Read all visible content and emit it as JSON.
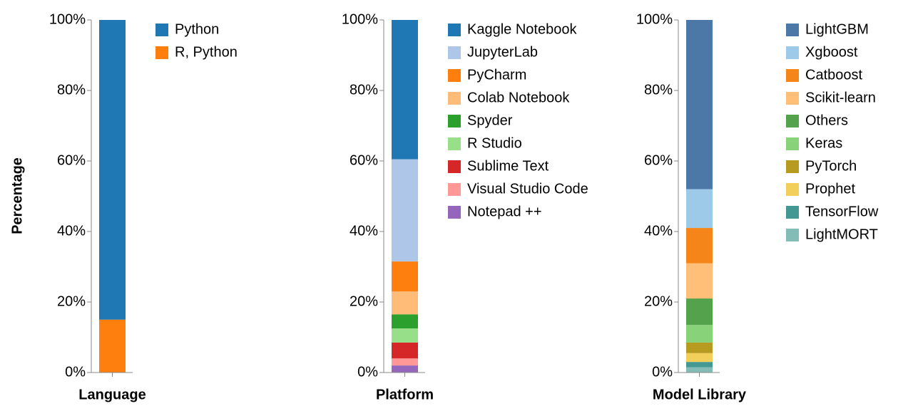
{
  "chart_data": [
    {
      "type": "bar",
      "stacked": true,
      "xlabel": "Language",
      "ylabel": "Percentage",
      "categories": [
        null
      ],
      "ylim": [
        0,
        100
      ],
      "yticks": [
        {
          "value": 0,
          "label": "0%"
        },
        {
          "value": 20,
          "label": "20%"
        },
        {
          "value": 40,
          "label": "40%"
        },
        {
          "value": 60,
          "label": "60%"
        },
        {
          "value": 80,
          "label": "80%"
        },
        {
          "value": 100,
          "label": "100%"
        }
      ],
      "series": [
        {
          "name": "Python",
          "color": "#1f77b4",
          "values": [
            85
          ]
        },
        {
          "name": "R, Python",
          "color": "#ff7f0e",
          "values": [
            15
          ]
        }
      ]
    },
    {
      "type": "bar",
      "stacked": true,
      "xlabel": "Platform",
      "categories": [
        null
      ],
      "ylim": [
        0,
        100
      ],
      "yticks": [
        {
          "value": 0,
          "label": "0%"
        },
        {
          "value": 20,
          "label": "20%"
        },
        {
          "value": 40,
          "label": "40%"
        },
        {
          "value": 60,
          "label": "60%"
        },
        {
          "value": 80,
          "label": "80%"
        },
        {
          "value": 100,
          "label": "100%"
        }
      ],
      "series": [
        {
          "name": "Kaggle Notebook",
          "color": "#1f77b4",
          "values": [
            39.5
          ]
        },
        {
          "name": "JupyterLab",
          "color": "#aec7e8",
          "values": [
            29
          ]
        },
        {
          "name": "PyCharm",
          "color": "#ff7f0e",
          "values": [
            8.5
          ]
        },
        {
          "name": "Colab Notebook",
          "color": "#ffbb78",
          "values": [
            6.5
          ]
        },
        {
          "name": "Spyder",
          "color": "#2ca02c",
          "values": [
            4
          ]
        },
        {
          "name": "R Studio",
          "color": "#98df8a",
          "values": [
            4
          ]
        },
        {
          "name": "Sublime Text",
          "color": "#d62728",
          "values": [
            4.5
          ]
        },
        {
          "name": "Visual Studio Code",
          "color": "#ff9896",
          "values": [
            2
          ]
        },
        {
          "name": "Notepad ++",
          "color": "#9467bd",
          "values": [
            2
          ]
        }
      ]
    },
    {
      "type": "bar",
      "stacked": true,
      "xlabel": "Model Library",
      "categories": [
        null
      ],
      "ylim": [
        0,
        100
      ],
      "yticks": [
        {
          "value": 0,
          "label": "0%"
        },
        {
          "value": 20,
          "label": "20%"
        },
        {
          "value": 40,
          "label": "40%"
        },
        {
          "value": 60,
          "label": "60%"
        },
        {
          "value": 80,
          "label": "80%"
        },
        {
          "value": 100,
          "label": "100%"
        }
      ],
      "series": [
        {
          "name": "LightGBM",
          "color": "#4c78a8",
          "values": [
            48
          ]
        },
        {
          "name": "Xgboost",
          "color": "#9ecae9",
          "values": [
            11
          ]
        },
        {
          "name": "Catboost",
          "color": "#f58518",
          "values": [
            10
          ]
        },
        {
          "name": "Scikit-learn",
          "color": "#ffbf79",
          "values": [
            10
          ]
        },
        {
          "name": "Others",
          "color": "#54a24b",
          "values": [
            7.5
          ]
        },
        {
          "name": "Keras",
          "color": "#88d27a",
          "values": [
            5
          ]
        },
        {
          "name": "PyTorch",
          "color": "#b79a20",
          "values": [
            3
          ]
        },
        {
          "name": "Prophet",
          "color": "#f2cf5b",
          "values": [
            2.5
          ]
        },
        {
          "name": "TensorFlow",
          "color": "#439894",
          "values": [
            1.5
          ]
        },
        {
          "name": "LightMORT",
          "color": "#83bcb6",
          "values": [
            1.5
          ]
        }
      ]
    }
  ]
}
